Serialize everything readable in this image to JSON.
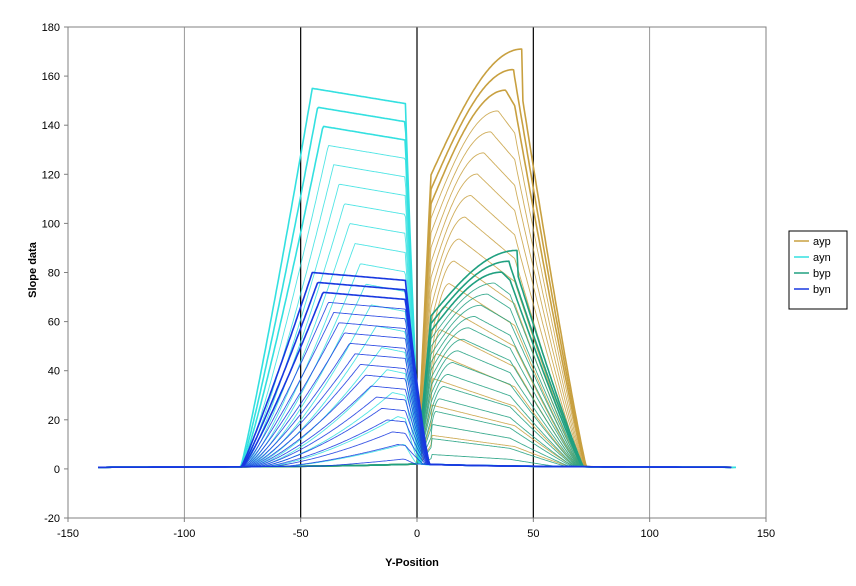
{
  "chart_data": {
    "type": "line",
    "xlabel": "Y-Position",
    "ylabel": "Slope data",
    "xlim": [
      -150,
      150
    ],
    "ylim": [
      -20,
      180
    ],
    "xticks": [
      -150,
      -100,
      -50,
      0,
      50,
      100,
      150
    ],
    "yticks": [
      -20,
      0,
      20,
      40,
      60,
      80,
      100,
      120,
      140,
      160,
      180
    ],
    "x_gridlines": [
      -100,
      -50,
      0,
      50,
      100
    ],
    "y_gridlines": false,
    "legend_position": "right",
    "series": [
      {
        "name": "ayp",
        "color": "#c8a040",
        "side": "positive",
        "family": {
          "curves": 18,
          "rise_start": 0,
          "rise_end": 6,
          "plateau_end": 42,
          "fall_end": 73,
          "peak_range": [
            14,
            171
          ]
        }
      },
      {
        "name": "ayn",
        "color": "#33e0e0",
        "side": "negative",
        "family": {
          "curves": 18,
          "rise_start": -76,
          "rise_end": -44,
          "plateau_end": -5,
          "fall_end": 2,
          "peak_range": [
            10,
            155
          ]
        }
      },
      {
        "name": "byp",
        "color": "#20a080",
        "side": "positive",
        "family": {
          "curves": 18,
          "rise_start": 0,
          "rise_end": 6,
          "plateau_end": 40,
          "fall_end": 72,
          "peak_range": [
            6,
            89
          ]
        }
      },
      {
        "name": "byn",
        "color": "#1838e0",
        "side": "negative",
        "family": {
          "curves": 18,
          "rise_start": -76,
          "rise_end": -44,
          "plateau_end": -5,
          "fall_end": 6,
          "peak_range": [
            4,
            80
          ]
        }
      }
    ]
  }
}
